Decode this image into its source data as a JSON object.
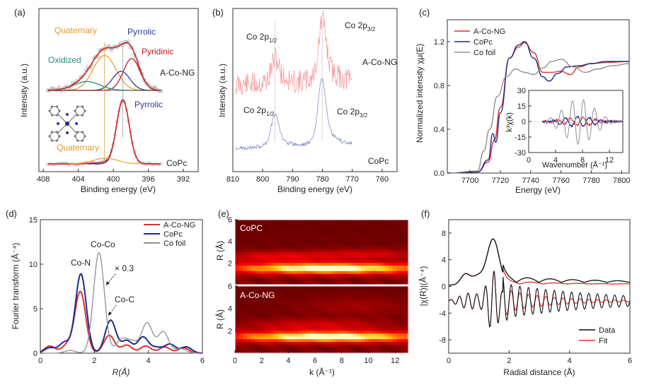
{
  "figure": {
    "panel_labels": [
      "(a)",
      "(b)",
      "(c)",
      "(d)",
      "(e)",
      "(f)"
    ]
  },
  "chart_data": [
    {
      "panel": "(a)",
      "type": "line",
      "xlabel": "Binding energy (eV)",
      "ylabel": "Intensity (a.u.)",
      "xlim": [
        408,
        390
      ],
      "xticks": [
        "408",
        "404",
        "400",
        "396",
        "392"
      ],
      "annotations": [
        "Quaternary",
        "Pyrrolic",
        "Pyridinic",
        "Oxidized",
        "A-Co-NG",
        "Pyrrolic",
        "Quaternary",
        "CoPc"
      ],
      "colors": {
        "quaternary": "#f0a030",
        "pyrrolic": "#2a3a9a",
        "pyridinic": "#b8201e",
        "oxidized": "#1f8f7a",
        "envelope": "#d02020",
        "raw": "#999999"
      },
      "series": [
        {
          "name": "A-Co-NG",
          "peaks": [
            {
              "label": "Quaternary",
              "center": 401.0,
              "height": 0.55,
              "width": 1.3
            },
            {
              "label": "Pyrrolic",
              "center": 399.1,
              "height": 0.3,
              "width": 1.0
            },
            {
              "label": "Pyridinic",
              "center": 397.9,
              "height": 0.5,
              "width": 0.95
            },
            {
              "label": "Oxidized",
              "center": 403.0,
              "height": 0.14,
              "width": 1.5
            }
          ]
        },
        {
          "name": "CoPc",
          "peaks": [
            {
              "label": "Quaternary",
              "center": 400.9,
              "height": 0.02,
              "width": 1.4
            },
            {
              "label": "Pyrrolic",
              "center": 398.9,
              "height": 1.0,
              "width": 0.72
            }
          ]
        }
      ]
    },
    {
      "panel": "(b)",
      "type": "line",
      "xlabel": "Binding energy (eV)",
      "ylabel": "Intensity (a.u.)",
      "xlim": [
        810,
        755
      ],
      "xticks": [
        "810",
        "800",
        "790",
        "780",
        "770",
        "760"
      ],
      "annotations": [
        "Co 2p",
        "1/2",
        "Co 2p",
        "3/2",
        "A-Co-NG",
        "Co 2p",
        "1/2",
        "Co 2p",
        "3/2",
        "CoPc"
      ],
      "series": [
        {
          "name": "A-Co-NG",
          "color": "#f4a0a0",
          "peaks": [
            {
              "center": 780.0,
              "height": 1.0
            },
            {
              "center": 795.8,
              "height": 0.4
            }
          ]
        },
        {
          "name": "CoPc",
          "color": "#8a90c8",
          "peaks": [
            {
              "center": 780.2,
              "height": 1.0
            },
            {
              "center": 795.9,
              "height": 0.5
            }
          ]
        }
      ]
    },
    {
      "panel": "(c)",
      "type": "line",
      "xlabel": "Energy (eV)",
      "ylabel": "Normalized intensity χμ(E)",
      "xlim": [
        7685,
        7805
      ],
      "ylim": [
        0.0,
        1.4
      ],
      "xticks": [
        "7700",
        "7720",
        "7740",
        "7760",
        "7780",
        "7800"
      ],
      "yticks": [
        "0.0",
        "0.4",
        "0.8",
        "1.2"
      ],
      "legend": {
        "position": "top-left",
        "entries": [
          "A-Co-NG",
          "CoPc",
          "Co foil"
        ]
      },
      "series": [
        {
          "name": "A-Co-NG",
          "color": "#e03030",
          "points": [
            [
              7685,
              0.0
            ],
            [
              7705,
              0.01
            ],
            [
              7712,
              0.1
            ],
            [
              7716,
              0.3
            ],
            [
              7720,
              0.6
            ],
            [
              7726,
              1.05
            ],
            [
              7732,
              1.15
            ],
            [
              7736,
              1.19
            ],
            [
              7742,
              1.1
            ],
            [
              7748,
              0.92
            ],
            [
              7754,
              0.92
            ],
            [
              7760,
              0.93
            ],
            [
              7766,
              0.9
            ],
            [
              7772,
              0.97
            ],
            [
              7780,
              1.0
            ],
            [
              7790,
              1.01
            ],
            [
              7805,
              1.02
            ]
          ]
        },
        {
          "name": "CoPc",
          "color": "#1f2a8a",
          "points": [
            [
              7685,
              0.0
            ],
            [
              7705,
              0.01
            ],
            [
              7712,
              0.12
            ],
            [
              7715,
              0.36
            ],
            [
              7717,
              0.28
            ],
            [
              7720,
              0.55
            ],
            [
              7726,
              1.05
            ],
            [
              7732,
              1.17
            ],
            [
              7736,
              1.2
            ],
            [
              7742,
              1.05
            ],
            [
              7748,
              0.88
            ],
            [
              7752,
              0.84
            ],
            [
              7758,
              0.91
            ],
            [
              7764,
              0.97
            ],
            [
              7772,
              0.98
            ],
            [
              7780,
              1.0
            ],
            [
              7790,
              1.02
            ],
            [
              7805,
              1.02
            ]
          ]
        },
        {
          "name": "Co foil",
          "color": "#909090",
          "points": [
            [
              7685,
              0.0
            ],
            [
              7705,
              0.02
            ],
            [
              7709,
              0.2
            ],
            [
              7713,
              0.4
            ],
            [
              7718,
              0.7
            ],
            [
              7724,
              0.88
            ],
            [
              7730,
              0.95
            ],
            [
              7736,
              0.92
            ],
            [
              7742,
              0.9
            ],
            [
              7748,
              0.96
            ],
            [
              7754,
              1.02
            ],
            [
              7760,
              1.04
            ],
            [
              7768,
              0.97
            ],
            [
              7776,
              0.92
            ],
            [
              7784,
              0.95
            ],
            [
              7794,
              0.98
            ],
            [
              7805,
              1.0
            ]
          ]
        }
      ],
      "inset": {
        "xlabel": "Wavenumber (Å⁻¹)",
        "ylabel": "k³χ(k)",
        "xlim": [
          0,
          14
        ],
        "ylim": [
          -30,
          30
        ],
        "xticks": [
          "0",
          "4",
          "8",
          "12"
        ],
        "yticks": [
          "30",
          "15",
          "0",
          "-15",
          "-30"
        ],
        "series": [
          {
            "name": "A-Co-NG",
            "color": "#e03030",
            "amp": 4
          },
          {
            "name": "CoPc",
            "color": "#1f2a8a",
            "amp": 5
          },
          {
            "name": "Co foil",
            "color": "#909090",
            "amp": 22
          }
        ]
      }
    },
    {
      "panel": "(d)",
      "type": "line",
      "xlabel": "R(Å)",
      "ylabel": "Fourier transform (Å⁻⁴)",
      "xlim": [
        0,
        6
      ],
      "ylim": [
        0,
        15
      ],
      "xticks": [
        "0",
        "2",
        "4",
        "6"
      ],
      "yticks": [
        "0",
        "5",
        "10",
        "15"
      ],
      "legend": {
        "position": "top-right",
        "entries": [
          "A-Co-NG",
          "CoPc",
          "Co foil"
        ]
      },
      "annotations": [
        "Co-Co",
        "Co-N",
        "× 0.3",
        "Co-C"
      ],
      "series": [
        {
          "name": "A-Co-NG",
          "color": "#e03030",
          "peaks": [
            {
              "r": 0.35,
              "h": 0.8
            },
            {
              "r": 1.0,
              "h": 0.9
            },
            {
              "r": 1.48,
              "h": 6.9
            },
            {
              "r": 2.55,
              "h": 2.0
            },
            {
              "r": 3.2,
              "h": 0.9
            },
            {
              "r": 3.9,
              "h": 0.8
            },
            {
              "r": 4.6,
              "h": 0.7
            },
            {
              "r": 5.3,
              "h": 0.6
            }
          ]
        },
        {
          "name": "CoPc",
          "color": "#1f2a8a",
          "peaks": [
            {
              "r": 0.35,
              "h": 0.6
            },
            {
              "r": 0.9,
              "h": 1.2
            },
            {
              "r": 1.5,
              "h": 8.9
            },
            {
              "r": 2.6,
              "h": 3.7
            },
            {
              "r": 3.2,
              "h": 1.4
            },
            {
              "r": 3.8,
              "h": 1.8
            },
            {
              "r": 4.3,
              "h": 0.6
            },
            {
              "r": 4.8,
              "h": 1.0
            },
            {
              "r": 5.4,
              "h": 0.7
            }
          ]
        },
        {
          "name": "Co foil",
          "color": "#909090",
          "peaks": [
            {
              "r": 1.1,
              "h": 0.3
            },
            {
              "r": 2.17,
              "h": 11.3
            },
            {
              "r": 3.0,
              "h": 1.5
            },
            {
              "r": 3.4,
              "h": 1.2
            },
            {
              "r": 3.95,
              "h": 3.4
            },
            {
              "r": 4.55,
              "h": 2.4
            },
            {
              "r": 5.2,
              "h": 0.5
            }
          ]
        }
      ]
    },
    {
      "panel": "(e)",
      "type": "heatmap",
      "xlabel": "k (Å⁻¹)",
      "ylabel": "R (Å)",
      "xlim": [
        0,
        13
      ],
      "ylim": [
        0,
        6
      ],
      "xticks": [
        "0",
        "2",
        "4",
        "6",
        "8",
        "10",
        "12"
      ],
      "yticks": [
        "2",
        "4",
        "6"
      ],
      "subplots": [
        {
          "name": "CoPC",
          "blobs": [
            {
              "k": 7,
              "r": 1.5,
              "amp": 1.0,
              "sk": 6,
              "sr": 0.38
            },
            {
              "k": 3,
              "r": 2.6,
              "amp": 0.35,
              "sk": 3,
              "sr": 0.35
            },
            {
              "k": 10,
              "r": 2.8,
              "amp": 0.3,
              "sk": 3,
              "sr": 0.35
            }
          ]
        },
        {
          "name": "A-Co-NG",
          "blobs": [
            {
              "k": 7,
              "r": 1.45,
              "amp": 1.0,
              "sk": 6,
              "sr": 0.35
            },
            {
              "k": 6,
              "r": 2.5,
              "amp": 0.3,
              "sk": 4,
              "sr": 0.4
            },
            {
              "k": 9,
              "r": 4.2,
              "amp": 0.15,
              "sk": 3,
              "sr": 0.6
            }
          ]
        }
      ]
    },
    {
      "panel": "(f)",
      "type": "line",
      "xlabel": "Radial distance (Å)",
      "ylabel": "|χ(R)|(Å⁻⁴)",
      "xlim": [
        0,
        6
      ],
      "ylim": [
        -10,
        10
      ],
      "xticks": [
        "0",
        "2",
        "4",
        "6"
      ],
      "yticks": [
        "8",
        "4",
        "0",
        "-4",
        "-8"
      ],
      "legend": {
        "position": "bottom-right",
        "entries": [
          "Data",
          "Fit"
        ]
      },
      "series": [
        {
          "name": "Data",
          "color": "#111111"
        },
        {
          "name": "Fit",
          "color": "#e03030"
        }
      ]
    }
  ]
}
